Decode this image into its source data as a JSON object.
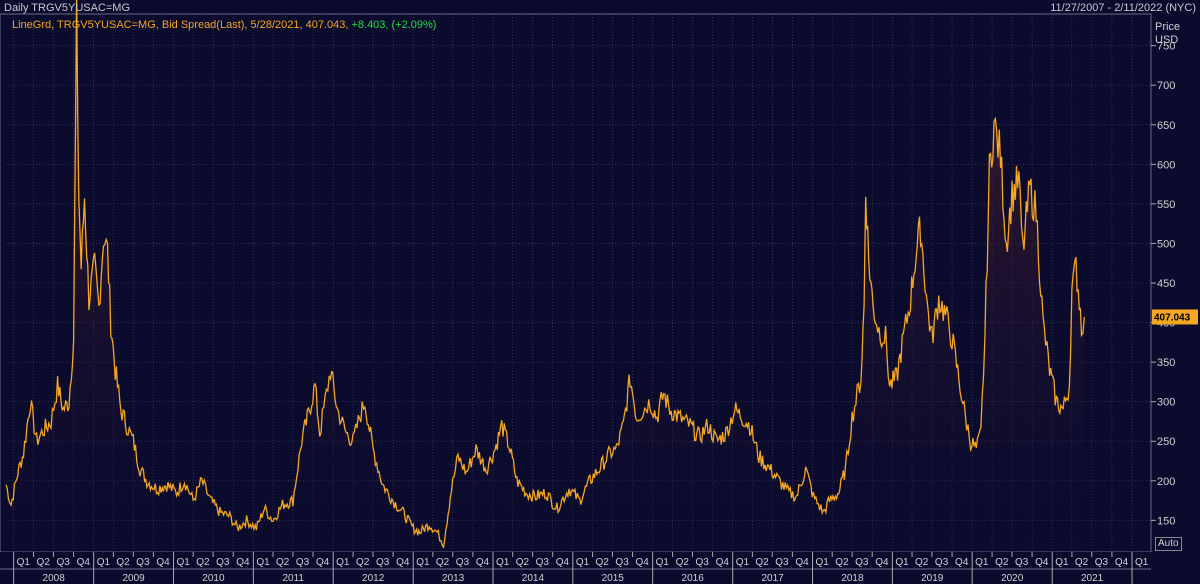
{
  "header": {
    "left": "Daily TRGV5YUSAC=MG",
    "right": "11/27/2007 - 2/11/2022 (NYC)"
  },
  "legend": {
    "text": "LineGrd, TRGV5YUSAC=MG, Bid Spread(Last), 5/28/2021, 407.043,",
    "change": "+8.403, (+2.09%)"
  },
  "y_axis": {
    "title": "Price",
    "unit": "USD"
  },
  "auto_label": "Auto",
  "last_value_label": "407.043",
  "colors": {
    "background": "#0b0b2e",
    "line": "#f5a623",
    "grid": "#4a4a6a",
    "change": "#22dd44"
  },
  "chart_data": {
    "type": "area",
    "title": "",
    "ylabel": "Price USD",
    "ylim": [
      110,
      790
    ],
    "yticks": [
      150,
      200,
      250,
      300,
      350,
      400,
      450,
      500,
      550,
      600,
      650,
      700,
      750
    ],
    "xlim": [
      "2007-11-27",
      "2022-02-11"
    ],
    "quarter_labels": [
      "Q1",
      "Q2",
      "Q3",
      "Q4"
    ],
    "years": [
      "2008",
      "2009",
      "2010",
      "2011",
      "2012",
      "2013",
      "2014",
      "2015",
      "2016",
      "2017",
      "2018",
      "2019",
      "2020",
      "2021"
    ],
    "last_point": {
      "date": "2021-05-28",
      "value": 407.043
    },
    "series": [
      {
        "points": [
          [
            "2007-11-27",
            195
          ],
          [
            "2007-12-20",
            170
          ],
          [
            "2008-01-20",
            210
          ],
          [
            "2008-02-15",
            235
          ],
          [
            "2008-03-17",
            300
          ],
          [
            "2008-04-15",
            250
          ],
          [
            "2008-05-20",
            265
          ],
          [
            "2008-06-20",
            275
          ],
          [
            "2008-07-20",
            320
          ],
          [
            "2008-08-15",
            290
          ],
          [
            "2008-09-10",
            300
          ],
          [
            "2008-10-01",
            380
          ],
          [
            "2008-10-15",
            790
          ],
          [
            "2008-10-25",
            560
          ],
          [
            "2008-11-05",
            470
          ],
          [
            "2008-11-20",
            560
          ],
          [
            "2008-12-10",
            430
          ],
          [
            "2009-01-05",
            470
          ],
          [
            "2009-01-25",
            420
          ],
          [
            "2009-02-15",
            510
          ],
          [
            "2009-03-05",
            490
          ],
          [
            "2009-03-20",
            400
          ],
          [
            "2009-04-10",
            340
          ],
          [
            "2009-05-05",
            290
          ],
          [
            "2009-06-01",
            270
          ],
          [
            "2009-07-01",
            250
          ],
          [
            "2009-08-01",
            215
          ],
          [
            "2009-09-01",
            200
          ],
          [
            "2009-10-15",
            190
          ],
          [
            "2009-12-01",
            195
          ],
          [
            "2010-01-15",
            185
          ],
          [
            "2010-02-20",
            200
          ],
          [
            "2010-04-01",
            175
          ],
          [
            "2010-05-10",
            200
          ],
          [
            "2010-06-20",
            175
          ],
          [
            "2010-08-01",
            160
          ],
          [
            "2010-09-15",
            155
          ],
          [
            "2010-10-20",
            140
          ],
          [
            "2010-12-01",
            150
          ],
          [
            "2011-01-15",
            140
          ],
          [
            "2011-02-20",
            165
          ],
          [
            "2011-04-01",
            150
          ],
          [
            "2011-05-15",
            170
          ],
          [
            "2011-07-01",
            175
          ],
          [
            "2011-08-10",
            250
          ],
          [
            "2011-09-15",
            290
          ],
          [
            "2011-10-10",
            320
          ],
          [
            "2011-11-01",
            260
          ],
          [
            "2011-12-01",
            310
          ],
          [
            "2011-12-20",
            340
          ],
          [
            "2012-01-20",
            290
          ],
          [
            "2012-03-01",
            260
          ],
          [
            "2012-04-01",
            250
          ],
          [
            "2012-05-01",
            280
          ],
          [
            "2012-05-25",
            300
          ],
          [
            "2012-07-01",
            240
          ],
          [
            "2012-08-15",
            195
          ],
          [
            "2012-10-01",
            175
          ],
          [
            "2012-11-15",
            160
          ],
          [
            "2013-01-01",
            140
          ],
          [
            "2013-02-01",
            135
          ],
          [
            "2013-03-15",
            145
          ],
          [
            "2013-04-20",
            135
          ],
          [
            "2013-05-20",
            120
          ],
          [
            "2013-06-25",
            190
          ],
          [
            "2013-07-25",
            230
          ],
          [
            "2013-09-01",
            210
          ],
          [
            "2013-10-15",
            240
          ],
          [
            "2013-12-01",
            215
          ],
          [
            "2014-01-10",
            240
          ],
          [
            "2014-02-10",
            270
          ],
          [
            "2014-03-15",
            245
          ],
          [
            "2014-04-20",
            200
          ],
          [
            "2014-06-01",
            185
          ],
          [
            "2014-07-15",
            180
          ],
          [
            "2014-09-01",
            185
          ],
          [
            "2014-10-20",
            165
          ],
          [
            "2014-12-15",
            190
          ],
          [
            "2015-02-01",
            175
          ],
          [
            "2015-03-20",
            200
          ],
          [
            "2015-05-01",
            215
          ],
          [
            "2015-06-20",
            235
          ],
          [
            "2015-07-20",
            240
          ],
          [
            "2015-08-20",
            270
          ],
          [
            "2015-09-20",
            330
          ],
          [
            "2015-10-20",
            280
          ],
          [
            "2015-11-20",
            290
          ],
          [
            "2015-12-20",
            300
          ],
          [
            "2016-01-20",
            280
          ],
          [
            "2016-02-20",
            310
          ],
          [
            "2016-03-20",
            290
          ],
          [
            "2016-05-01",
            280
          ],
          [
            "2016-06-20",
            270
          ],
          [
            "2016-08-01",
            255
          ],
          [
            "2016-09-10",
            270
          ],
          [
            "2016-10-20",
            250
          ],
          [
            "2016-12-01",
            260
          ],
          [
            "2017-01-10",
            290
          ],
          [
            "2017-02-15",
            280
          ],
          [
            "2017-03-20",
            270
          ],
          [
            "2017-05-01",
            230
          ],
          [
            "2017-06-20",
            215
          ],
          [
            "2017-08-01",
            200
          ],
          [
            "2017-09-15",
            185
          ],
          [
            "2017-10-20",
            180
          ],
          [
            "2017-12-01",
            215
          ],
          [
            "2018-01-05",
            180
          ],
          [
            "2018-02-20",
            160
          ],
          [
            "2018-03-20",
            175
          ],
          [
            "2018-05-01",
            185
          ],
          [
            "2018-06-01",
            215
          ],
          [
            "2018-07-01",
            280
          ],
          [
            "2018-08-10",
            330
          ],
          [
            "2018-08-25",
            420
          ],
          [
            "2018-09-01",
            570
          ],
          [
            "2018-09-15",
            480
          ],
          [
            "2018-10-05",
            420
          ],
          [
            "2018-11-01",
            390
          ],
          [
            "2018-12-01",
            380
          ],
          [
            "2018-12-20",
            320
          ],
          [
            "2019-01-20",
            330
          ],
          [
            "2019-02-20",
            380
          ],
          [
            "2019-03-20",
            420
          ],
          [
            "2019-04-20",
            490
          ],
          [
            "2019-05-10",
            520
          ],
          [
            "2019-06-10",
            420
          ],
          [
            "2019-07-01",
            380
          ],
          [
            "2019-08-01",
            430
          ],
          [
            "2019-09-01",
            410
          ],
          [
            "2019-10-01",
            380
          ],
          [
            "2019-11-01",
            330
          ],
          [
            "2019-12-01",
            280
          ],
          [
            "2019-12-25",
            250
          ],
          [
            "2020-01-20",
            240
          ],
          [
            "2020-02-10",
            260
          ],
          [
            "2020-02-28",
            380
          ],
          [
            "2020-03-20",
            590
          ],
          [
            "2020-04-10",
            650
          ],
          [
            "2020-05-10",
            610
          ],
          [
            "2020-06-05",
            500
          ],
          [
            "2020-07-01",
            560
          ],
          [
            "2020-08-01",
            580
          ],
          [
            "2020-08-20",
            490
          ],
          [
            "2020-09-20",
            570
          ],
          [
            "2020-10-20",
            540
          ],
          [
            "2020-11-20",
            400
          ],
          [
            "2020-12-20",
            340
          ],
          [
            "2021-01-20",
            300
          ],
          [
            "2021-02-20",
            290
          ],
          [
            "2021-03-20",
            320
          ],
          [
            "2021-04-01",
            440
          ],
          [
            "2021-04-20",
            470
          ],
          [
            "2021-05-05",
            430
          ],
          [
            "2021-05-15",
            398
          ],
          [
            "2021-05-28",
            407
          ]
        ]
      }
    ]
  }
}
